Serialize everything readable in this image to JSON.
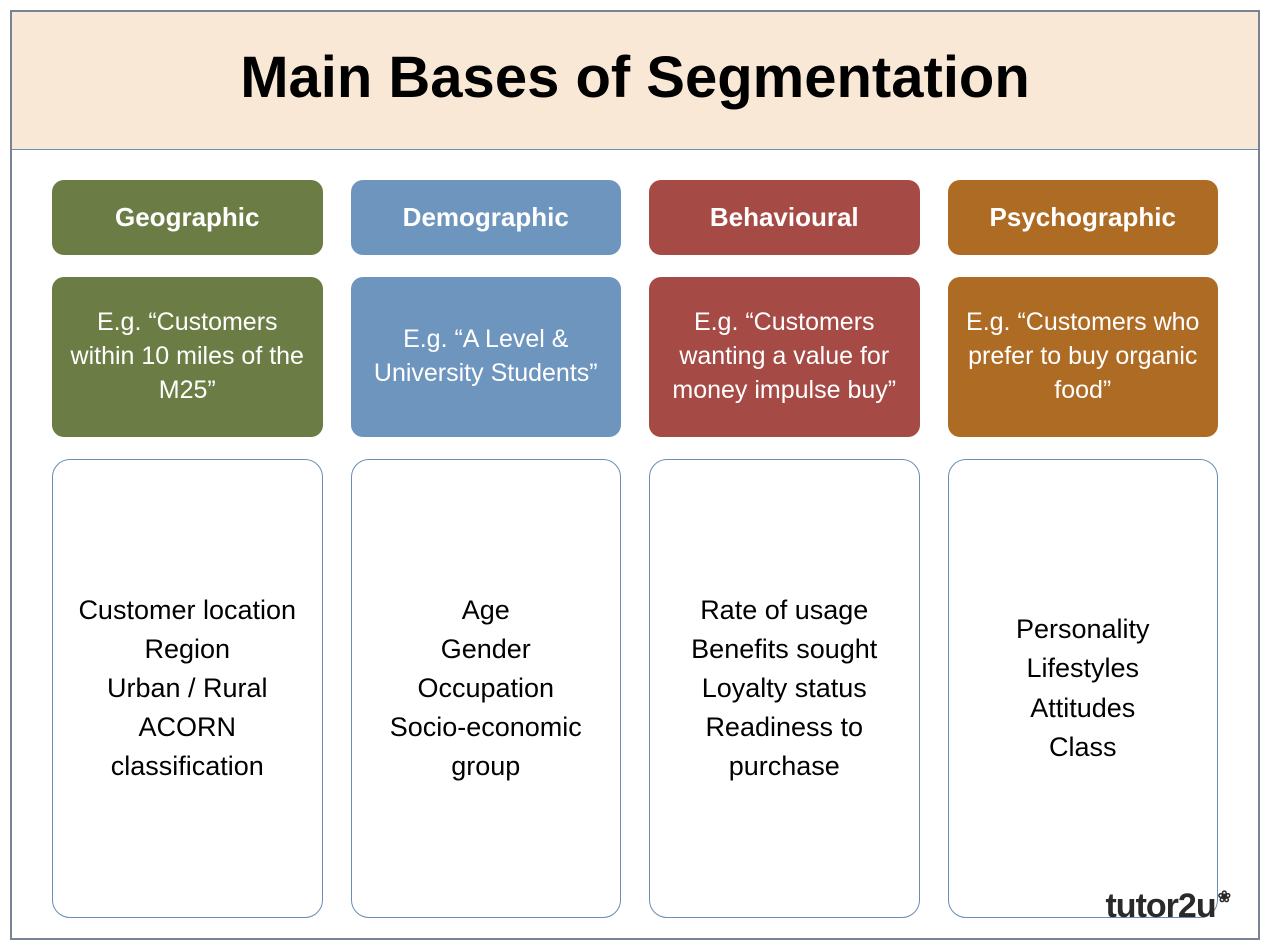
{
  "slide": {
    "title": "Main Bases of Segmentation",
    "title_fontsize": 58,
    "title_bg": "#f9e8d6",
    "frame_border_color": "#7a8396",
    "divider_color": "#6a8db3",
    "background_color": "#ffffff"
  },
  "columns": [
    {
      "header": "Geographic",
      "header_bg": "#6b7c44",
      "example": "E.g. “Customers within 10 miles of the M25”",
      "example_bg": "#6b7c44",
      "details": "Customer location\nRegion\nUrban / Rural\nACORN classification",
      "details_border": "#6a8db3"
    },
    {
      "header": "Demographic",
      "header_bg": "#6d95bd",
      "example": "E.g. “A Level & University Students”",
      "example_bg": "#6d95bd",
      "details": "Age\nGender\nOccupation\nSocio-economic group",
      "details_border": "#6a8db3"
    },
    {
      "header": "Behavioural",
      "header_bg": "#a64a45",
      "example": "E.g. “Customers wanting a value for money impulse buy”",
      "example_bg": "#a64a45",
      "details": "Rate of usage\nBenefits sought\nLoyalty status\nReadiness to purchase",
      "details_border": "#6a8db3"
    },
    {
      "header": "Psychographic",
      "header_bg": "#ae6b24",
      "example": "E.g. “Customers who prefer to buy organic food”",
      "example_bg": "#ae6b24",
      "details": "Personality\nLifestyles\nAttitudes\nClass",
      "details_border": "#6a8db3"
    }
  ],
  "footer": {
    "brand_prefix": "tutor",
    "brand_suffix": "2u",
    "flower": "❀"
  },
  "typography": {
    "header_fontsize": 26,
    "example_fontsize": 25,
    "details_fontsize": 27,
    "footer_fontsize": 34
  },
  "layout": {
    "column_gap": 28,
    "box_radius": 12,
    "details_radius": 18
  }
}
